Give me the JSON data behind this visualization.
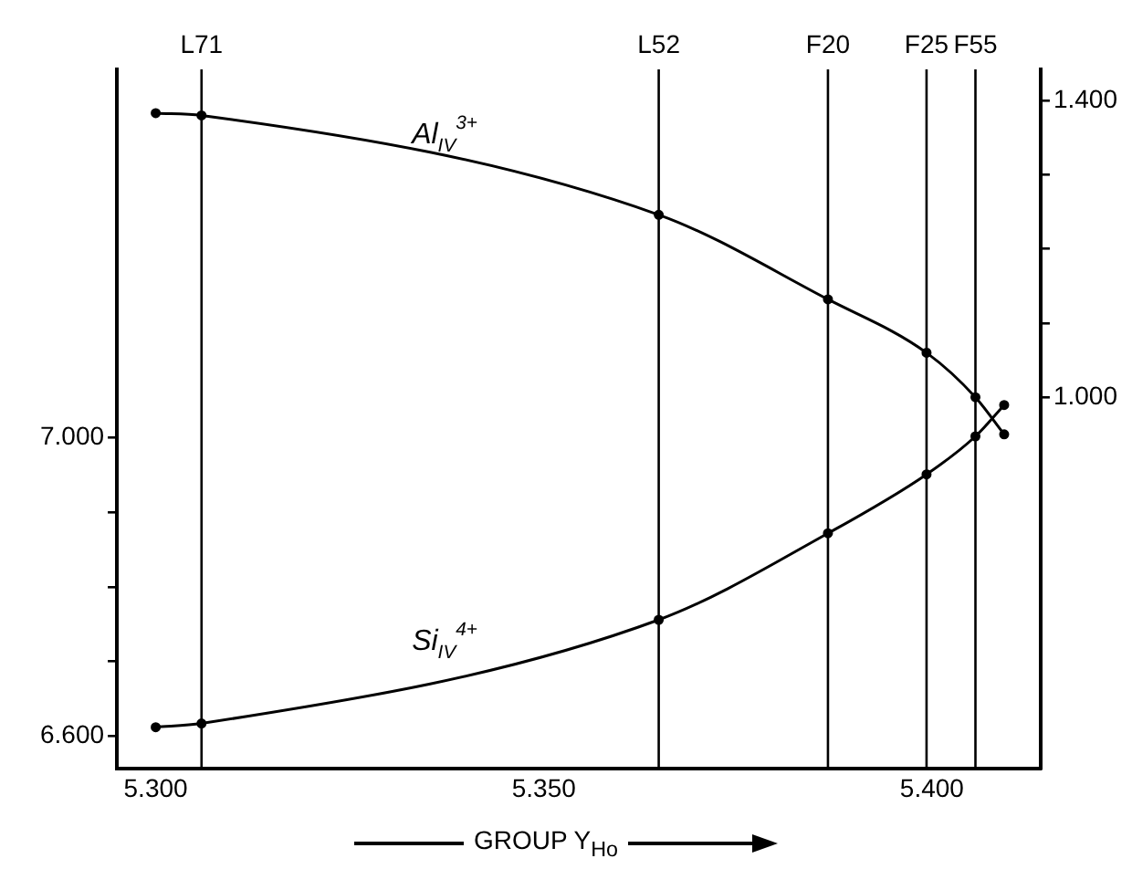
{
  "chart_data": {
    "type": "line",
    "xlabel": "GROUP Y$_{Ho}$",
    "xlim": [
      5.295,
      5.414
    ],
    "xticks": [
      {
        "value": 5.3,
        "label": "5.300"
      },
      {
        "value": 5.35,
        "label": "5.350"
      },
      {
        "value": 5.4,
        "label": "5.400"
      }
    ],
    "ylim": [
      6.556,
      7.494
    ],
    "yticks": [
      {
        "value": 6.6,
        "label": "6.600"
      },
      {
        "value": 6.7,
        "label": null
      },
      {
        "value": 6.8,
        "label": null
      },
      {
        "value": 6.9,
        "label": null
      },
      {
        "value": 7.0,
        "label": "7.000"
      }
    ],
    "y2lim": [
      0.499,
      1.442
    ],
    "y2ticks": [
      {
        "value": 1.0,
        "label": "1.000"
      },
      {
        "value": 1.1,
        "label": null
      },
      {
        "value": 1.2,
        "label": null
      },
      {
        "value": 1.3,
        "label": null
      },
      {
        "value": 1.4,
        "label": "1.400"
      }
    ],
    "grid": false,
    "legend": false,
    "marker": "circle",
    "line_style": "solid",
    "series": [
      {
        "name": "Al$_{IV}$$^{3+}$",
        "color": "#000000",
        "axis": "y2",
        "x": [
          5.3,
          5.3059,
          5.3648,
          5.3866,
          5.3993,
          5.4056,
          5.4093
        ],
        "values": [
          1.383,
          1.38,
          1.246,
          1.132,
          1.06,
          1.0,
          0.95
        ]
      },
      {
        "name": "Si$_{IV}$$^{4+}$",
        "color": "#000000",
        "axis": "y",
        "x": [
          5.3,
          5.3059,
          5.3648,
          5.3866,
          5.3993,
          5.4056,
          5.4093
        ],
        "values": [
          6.612,
          6.617,
          6.756,
          6.872,
          6.951,
          7.002,
          7.044
        ]
      }
    ],
    "ref_lines": [
      {
        "axis": "x",
        "value": 5.3059,
        "label": "L71"
      },
      {
        "axis": "x",
        "value": 5.3648,
        "label": "L52"
      },
      {
        "axis": "x",
        "value": 5.3866,
        "label": "F20"
      },
      {
        "axis": "x",
        "value": 5.3993,
        "label": "F25"
      },
      {
        "axis": "x",
        "value": 5.4056,
        "label": "F55"
      }
    ]
  }
}
